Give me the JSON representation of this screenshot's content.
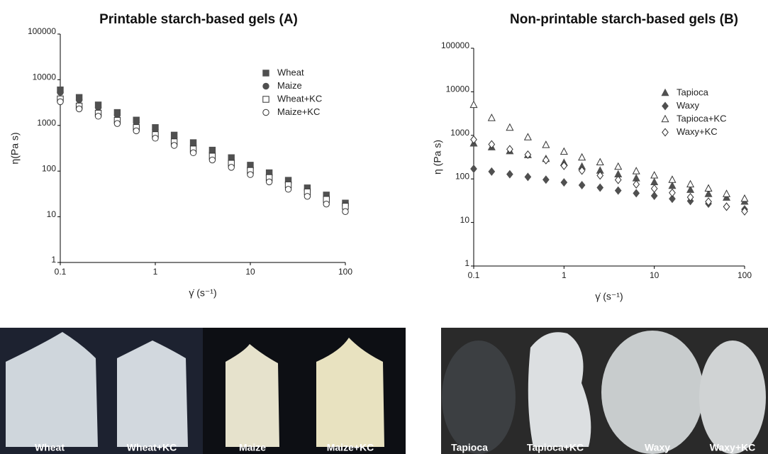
{
  "chart_data": [
    {
      "type": "scatter",
      "title": "Printable starch-based gels (A)",
      "x_label": "γ̇ (s⁻¹)",
      "y_label": "η(Pa s)",
      "log_x": true,
      "log_y": true,
      "grid": false,
      "legend": "upper right",
      "xlim": [
        0.1,
        100
      ],
      "xticks": [
        0.1,
        1,
        10,
        100
      ],
      "ylim": [
        1,
        100000
      ],
      "yticks": [
        1,
        10,
        100,
        1000,
        10000,
        100000
      ],
      "x": [
        0.1,
        0.158,
        0.251,
        0.398,
        0.631,
        1,
        1.58,
        2.51,
        3.98,
        6.31,
        10,
        15.8,
        25.1,
        39.8,
        63.1,
        100
      ],
      "series": [
        {
          "name": "Wheat",
          "color": "#505050",
          "marker": "square-filled",
          "values": [
            6000,
            4100,
            2810,
            1920,
            1310,
            900,
            615,
            420,
            288,
            197,
            135,
            92,
            63,
            43,
            30,
            20
          ]
        },
        {
          "name": "Maize",
          "color": "#505050",
          "marker": "circle-filled",
          "values": [
            5300,
            3630,
            2480,
            1700,
            1160,
            795,
            545,
            372,
            255,
            174,
            119,
            82,
            56,
            38,
            26,
            18
          ]
        },
        {
          "name": "Wheat+KC",
          "color": "#505050",
          "marker": "square-open",
          "values": [
            3800,
            2650,
            1850,
            1290,
            898,
            626,
            436,
            304,
            212,
            148,
            103,
            72,
            50,
            35,
            24,
            17
          ]
        },
        {
          "name": "Maize+KC",
          "color": "#505050",
          "marker": "circle-open",
          "values": [
            3300,
            2300,
            1590,
            1100,
            760,
            525,
            365,
            252,
            175,
            121,
            84,
            58,
            40,
            28,
            19,
            13
          ]
        }
      ]
    },
    {
      "type": "scatter",
      "title": "Non-printable starch-based gels (B)",
      "x_label": "γ̇ (s⁻¹)",
      "y_label": "η (Pa s)",
      "log_x": true,
      "log_y": true,
      "grid": false,
      "legend": "upper right",
      "xlim": [
        0.1,
        100
      ],
      "xticks": [
        0.1,
        1,
        10,
        100
      ],
      "ylim": [
        1,
        100000
      ],
      "yticks": [
        1,
        10,
        100,
        1000,
        10000,
        100000
      ],
      "x": [
        0.1,
        0.158,
        0.251,
        0.398,
        0.631,
        1,
        1.58,
        2.51,
        3.98,
        6.31,
        10,
        15.8,
        25.1,
        39.8,
        63.1,
        100
      ],
      "series": [
        {
          "name": "Tapioca",
          "color": "#505050",
          "marker": "triangle-filled",
          "values": [
            650,
            530,
            432,
            352,
            287,
            234,
            191,
            155,
            127,
            103,
            84,
            69,
            56,
            45,
            37,
            30
          ]
        },
        {
          "name": "Waxy",
          "color": "#505050",
          "marker": "diamond-filled",
          "values": [
            170,
            147,
            128,
            111,
            96,
            83,
            72,
            63,
            54,
            47,
            41,
            35,
            31,
            27,
            23,
            20
          ]
        },
        {
          "name": "Tapioca+KC",
          "color": "#505050",
          "marker": "triangle-open",
          "values": [
            5000,
            2500,
            1500,
            900,
            600,
            420,
            310,
            240,
            190,
            150,
            120,
            95,
            75,
            60,
            45,
            35
          ]
        },
        {
          "name": "Waxy+KC",
          "color": "#505050",
          "marker": "diamond-open",
          "values": [
            800,
            620,
            480,
            360,
            270,
            200,
            155,
            120,
            95,
            75,
            60,
            48,
            38,
            30,
            23,
            18
          ]
        }
      ]
    }
  ],
  "photos": {
    "panel_a": [
      "Wheat",
      "Wheat+KC",
      "Maize",
      "Maize+KC"
    ],
    "panel_b": [
      "Tapioca",
      "Tapioca+KC",
      "Waxy",
      "Waxy+KC"
    ]
  }
}
